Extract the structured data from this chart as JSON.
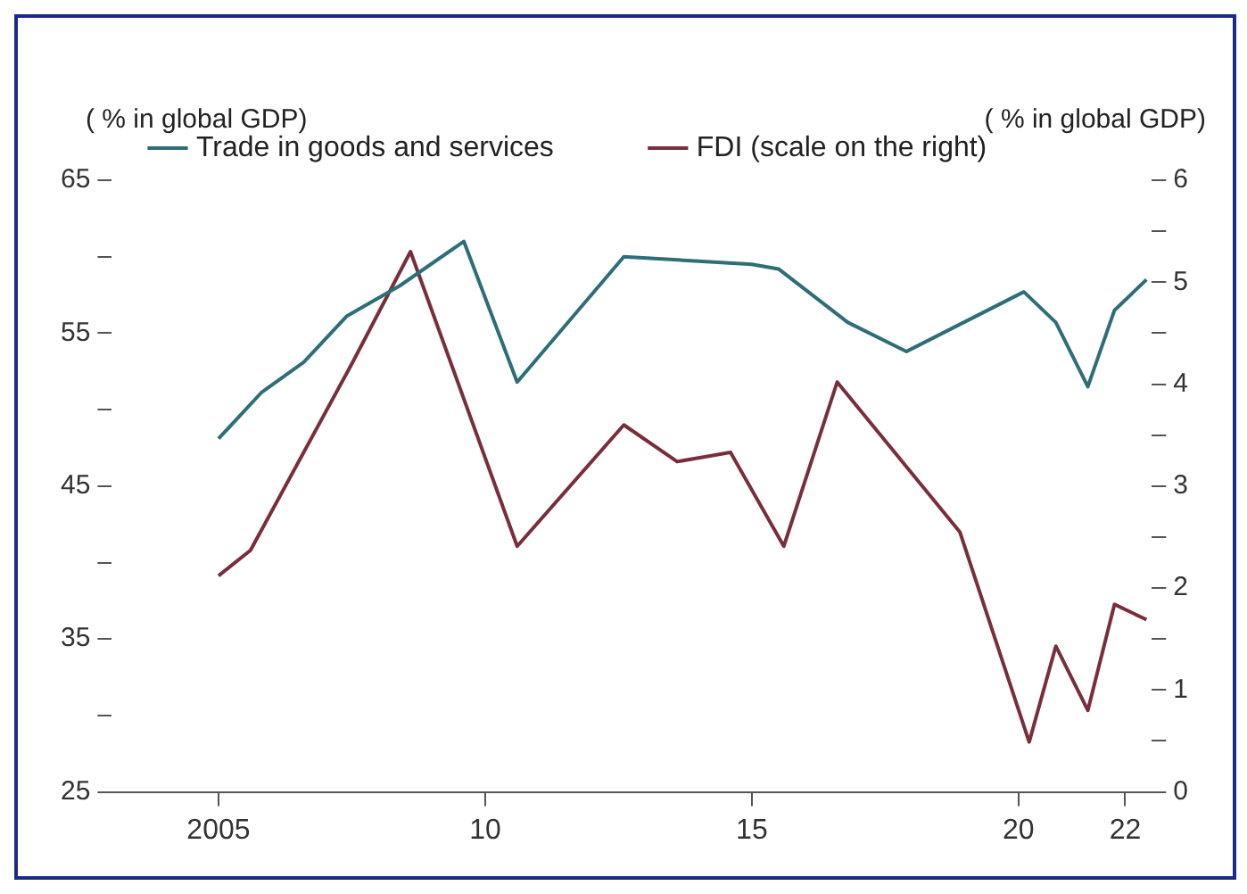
{
  "chart_data": {
    "type": "line",
    "xlabel": null,
    "ylabel": "( % in global GDP)",
    "y2label": "( % in global GDP)",
    "xlim": [
      2003,
      2022.5
    ],
    "xticks": [
      2005,
      {
        "value": 2010,
        "label": "10"
      },
      {
        "value": 2015,
        "label": "15"
      },
      {
        "value": 2020,
        "label": "20"
      },
      {
        "value": 2022,
        "label": "22"
      }
    ],
    "ylim": [
      25,
      65
    ],
    "yticks": [
      25,
      {
        "value": 30,
        "label": null
      },
      35,
      {
        "value": 40,
        "label": null
      },
      45,
      {
        "value": 50,
        "label": null
      },
      55,
      {
        "value": 60,
        "label": null
      },
      65
    ],
    "y2lim": [
      0,
      6
    ],
    "y2ticks": [
      0,
      {
        "value": 0.5,
        "label": null
      },
      1,
      {
        "value": 1.5,
        "label": null
      },
      2,
      {
        "value": 2.5,
        "label": null
      },
      3,
      {
        "value": 3.5,
        "label": null
      },
      4,
      {
        "value": 4.5,
        "label": null
      },
      5,
      {
        "value": 5.5,
        "label": null
      },
      6
    ],
    "series": [
      {
        "name": "Trade in goods and services",
        "color": "#2e6e78",
        "x": [
          2005.0,
          2005.8,
          2006.6,
          2007.4,
          2008.4,
          2009.6,
          2010.6,
          2012.6,
          2015.0,
          2015.5,
          2016.8,
          2017.9,
          2020.1,
          2020.7,
          2021.3,
          2021.8,
          2022.4
        ],
        "values": [
          48.1,
          51.1,
          53.1,
          56.1,
          58.1,
          61.0,
          51.8,
          60.0,
          59.5,
          59.2,
          55.7,
          53.8,
          57.7,
          55.7,
          51.5,
          56.5,
          58.5
        ]
      },
      {
        "name": "FDI (scale on the right)",
        "color": "#7a2e3c",
        "axis": "y2",
        "x": [
          2005.0,
          2005.6,
          2007.5,
          2008.6,
          2010.6,
          2012.6,
          2013.6,
          2014.6,
          2015.6,
          2016.6,
          2018.9,
          2020.2,
          2020.7,
          2021.3,
          2021.8,
          2022.4
        ],
        "values": [
          2.12,
          2.37,
          4.2,
          5.3,
          2.41,
          3.6,
          3.24,
          3.33,
          2.41,
          4.02,
          2.55,
          0.49,
          1.43,
          0.8,
          1.84,
          1.69
        ]
      }
    ],
    "grid": false,
    "legend": "top",
    "marker": "none",
    "line_style": "solid"
  }
}
